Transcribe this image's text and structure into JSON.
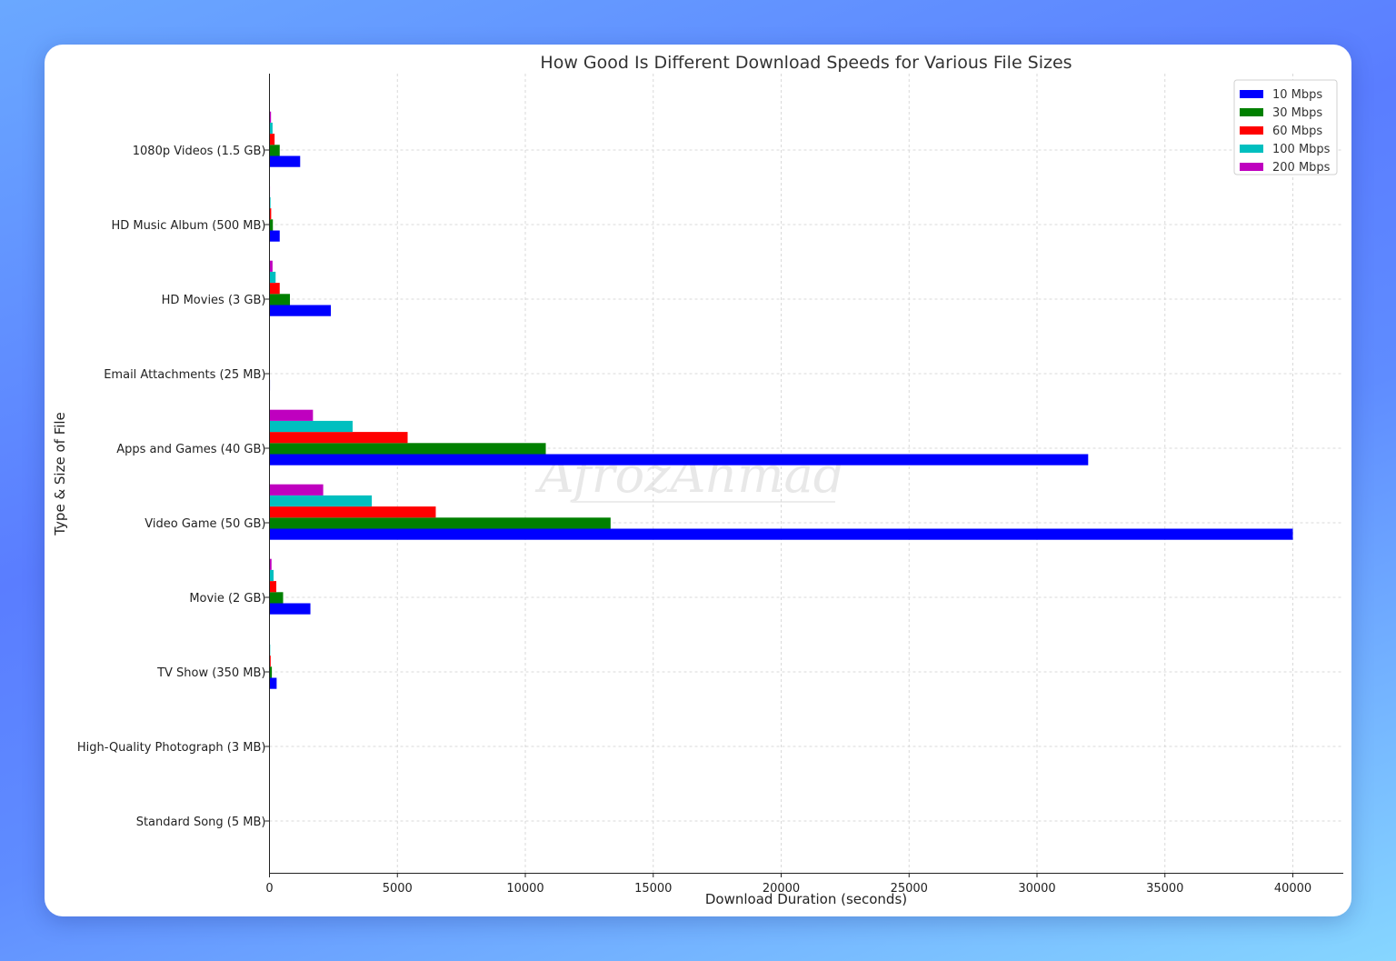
{
  "chart_data": {
    "type": "bar",
    "orientation": "horizontal",
    "title": "How Good Is Different Download Speeds for Various File Sizes",
    "xlabel": "Download Duration (seconds)",
    "ylabel": "Type & Size of File",
    "xlim": [
      0,
      42000
    ],
    "xticks": [
      0,
      5000,
      10000,
      15000,
      20000,
      25000,
      30000,
      35000,
      40000
    ],
    "grid": true,
    "legend_position": "top-right",
    "watermark": "AfrozAhmad",
    "categories": [
      "1080p Videos (1.5 GB)",
      "HD Music Album (500 MB)",
      "HD Movies (3 GB)",
      "Email Attachments (25 MB)",
      "Apps and Games (40 GB)",
      "Video Game (50 GB)",
      "Movie (2 GB)",
      "TV Show (350 MB)",
      "High-Quality Photograph (3 MB)",
      "Standard Song (5 MB)"
    ],
    "series": [
      {
        "name": "10 Mbps",
        "color": "#0000ff",
        "values": [
          1200,
          400,
          2400,
          20,
          32000,
          40000,
          1600,
          280,
          2.4,
          4
        ]
      },
      {
        "name": "30 Mbps",
        "color": "#008000",
        "values": [
          400,
          133,
          800,
          7,
          10800,
          13333,
          533,
          93,
          0.8,
          1.3
        ]
      },
      {
        "name": "60 Mbps",
        "color": "#ff0000",
        "values": [
          200,
          67,
          400,
          3,
          5400,
          6500,
          267,
          47,
          0.4,
          0.7
        ]
      },
      {
        "name": "100 Mbps",
        "color": "#00bfbf",
        "values": [
          120,
          40,
          240,
          2,
          3250,
          4000,
          160,
          28,
          0.24,
          0.4
        ]
      },
      {
        "name": "200 Mbps",
        "color": "#bf00bf",
        "values": [
          60,
          20,
          120,
          1,
          1700,
          2100,
          80,
          14,
          0.12,
          0.2
        ]
      }
    ]
  }
}
